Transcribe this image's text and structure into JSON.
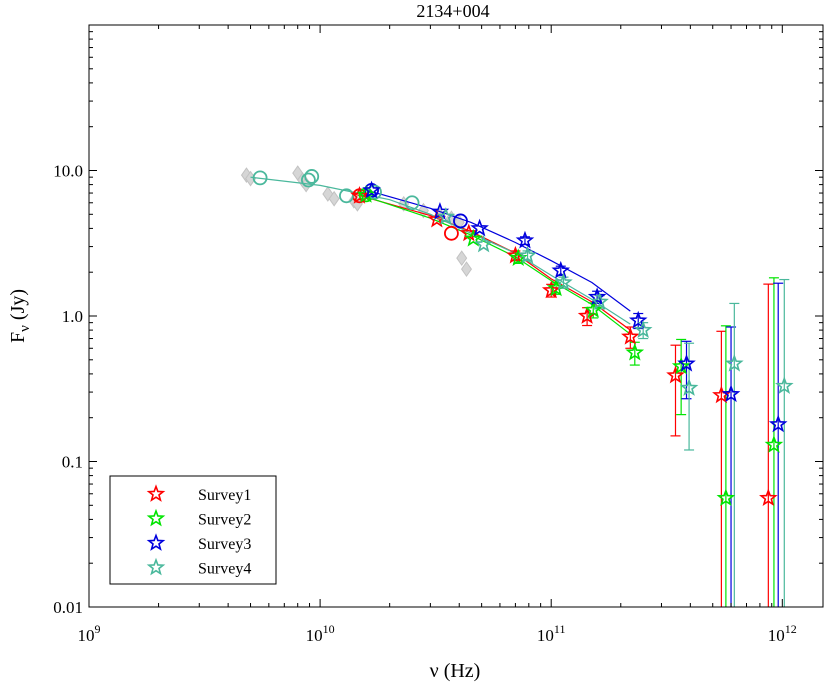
{
  "chart_data": {
    "type": "scatter",
    "title": "2134+004",
    "xlabel": "ν (Hz)",
    "ylabel_main": "F",
    "ylabel_sub": "ν",
    "ylabel_unit": " (Jy)",
    "x_scale": "log",
    "y_scale": "log",
    "xlim": [
      1000000000.0,
      1500000000000.0
    ],
    "ylim": [
      0.01,
      100
    ],
    "x_ticks": [
      {
        "value": 1000000000.0,
        "base": "10",
        "exp": "9"
      },
      {
        "value": 10000000000.0,
        "base": "10",
        "exp": "10"
      },
      {
        "value": 100000000000.0,
        "base": "10",
        "exp": "11"
      },
      {
        "value": 1000000000000.0,
        "base": "10",
        "exp": "12"
      }
    ],
    "y_ticks": [
      {
        "value": 0.01,
        "label": "0.01"
      },
      {
        "value": 0.1,
        "label": "0.1"
      },
      {
        "value": 1,
        "label": "1.0"
      },
      {
        "value": 10,
        "label": "10.0"
      }
    ],
    "legend": {
      "placement": "bottom-left"
    },
    "archival_points": [
      {
        "x": 4800000000.0,
        "y": 9.3
      },
      {
        "x": 5000000000.0,
        "y": 8.8
      },
      {
        "x": 8000000000.0,
        "y": 9.6
      },
      {
        "x": 8400000000.0,
        "y": 8.6
      },
      {
        "x": 8700000000.0,
        "y": 8.0
      },
      {
        "x": 10800000000.0,
        "y": 6.9
      },
      {
        "x": 11500000000.0,
        "y": 6.4
      },
      {
        "x": 14000000000.0,
        "y": 6.2
      },
      {
        "x": 14500000000.0,
        "y": 5.9
      },
      {
        "x": 23000000000.0,
        "y": 5.9
      },
      {
        "x": 28000000000.0,
        "y": 5.3
      },
      {
        "x": 33000000000.0,
        "y": 4.9
      },
      {
        "x": 37000000000.0,
        "y": 4.7
      },
      {
        "x": 40000000000.0,
        "y": 4.4
      },
      {
        "x": 41000000000.0,
        "y": 2.5
      },
      {
        "x": 43000000000.0,
        "y": 2.1
      }
    ],
    "series": [
      {
        "name": "Survey1",
        "color": "#ff0000",
        "circles": [
          {
            "x": 14800000000.0,
            "y": 6.7
          },
          {
            "x": 37000000000.0,
            "y": 3.7
          }
        ],
        "stars": [
          {
            "x": 14800000000.0,
            "y": 6.7
          },
          {
            "x": 32000000000.0,
            "y": 4.6
          },
          {
            "x": 44000000000.0,
            "y": 3.7
          },
          {
            "x": 70000000000.0,
            "y": 2.6,
            "err_lo": 0.2,
            "err_hi": 0.2
          },
          {
            "x": 100000000000.0,
            "y": 1.5,
            "err_lo": 0.15,
            "err_hi": 0.15
          },
          {
            "x": 143000000000.0,
            "y": 1.0,
            "err_lo": 0.14,
            "err_hi": 0.14
          },
          {
            "x": 220000000000.0,
            "y": 0.72,
            "err_lo": 0.12,
            "err_hi": 0.12
          },
          {
            "x": 345000000000.0,
            "y": 0.39,
            "err_lo": 0.24,
            "err_hi": 0.24
          },
          {
            "x": 545000000000.0,
            "y": 0.285,
            "err_lo": 0.28,
            "err_hi": 0.5
          },
          {
            "x": 870000000000.0,
            "y": 0.056,
            "err_lo": 0.05,
            "err_hi": 1.6
          }
        ],
        "fit": [
          {
            "x": 14000000000.0,
            "y": 6.9
          },
          {
            "x": 30000000000.0,
            "y": 4.9
          },
          {
            "x": 45000000000.0,
            "y": 3.8
          },
          {
            "x": 70000000000.0,
            "y": 2.7
          },
          {
            "x": 100000000000.0,
            "y": 1.8
          },
          {
            "x": 150000000000.0,
            "y": 1.25
          },
          {
            "x": 220000000000.0,
            "y": 0.8
          }
        ]
      },
      {
        "name": "Survey2",
        "color": "#00e400",
        "circles": [
          {
            "x": 15800000000.0,
            "y": 6.8
          }
        ],
        "stars": [
          {
            "x": 15800000000.0,
            "y": 6.8
          },
          {
            "x": 46000000000.0,
            "y": 3.4
          },
          {
            "x": 72000000000.0,
            "y": 2.5,
            "err_lo": 0.2,
            "err_hi": 0.2
          },
          {
            "x": 105000000000.0,
            "y": 1.55,
            "err_lo": 0.14,
            "err_hi": 0.14
          },
          {
            "x": 152000000000.0,
            "y": 1.1,
            "err_lo": 0.13,
            "err_hi": 0.13
          },
          {
            "x": 230000000000.0,
            "y": 0.56,
            "err_lo": 0.1,
            "err_hi": 0.1
          },
          {
            "x": 365000000000.0,
            "y": 0.45,
            "err_lo": 0.24,
            "err_hi": 0.24
          },
          {
            "x": 570000000000.0,
            "y": 0.056,
            "err_lo": 0.05,
            "err_hi": 0.8
          },
          {
            "x": 920000000000.0,
            "y": 0.13,
            "err_lo": 0.125,
            "err_hi": 1.7
          }
        ],
        "fit": [
          {
            "x": 15000000000.0,
            "y": 6.8
          },
          {
            "x": 30000000000.0,
            "y": 4.7
          },
          {
            "x": 45000000000.0,
            "y": 3.6
          },
          {
            "x": 70000000000.0,
            "y": 2.55
          },
          {
            "x": 100000000000.0,
            "y": 1.75
          },
          {
            "x": 150000000000.0,
            "y": 1.2
          },
          {
            "x": 220000000000.0,
            "y": 0.75
          }
        ]
      },
      {
        "name": "Survey3",
        "color": "#0000dd",
        "circles": [
          {
            "x": 16700000000.0,
            "y": 7.3
          },
          {
            "x": 40500000000.0,
            "y": 4.5
          }
        ],
        "stars": [
          {
            "x": 16700000000.0,
            "y": 7.3
          },
          {
            "x": 33000000000.0,
            "y": 5.2
          },
          {
            "x": 49000000000.0,
            "y": 4.0
          },
          {
            "x": 77000000000.0,
            "y": 3.3,
            "err_lo": 0.2,
            "err_hi": 0.2
          },
          {
            "x": 110000000000.0,
            "y": 2.05,
            "err_lo": 0.15,
            "err_hi": 0.15
          },
          {
            "x": 158000000000.0,
            "y": 1.35,
            "err_lo": 0.13,
            "err_hi": 0.13
          },
          {
            "x": 238000000000.0,
            "y": 0.93,
            "err_lo": 0.11,
            "err_hi": 0.11
          },
          {
            "x": 385000000000.0,
            "y": 0.47,
            "err_lo": 0.2,
            "err_hi": 0.2
          },
          {
            "x": 600000000000.0,
            "y": 0.29,
            "err_lo": 0.28,
            "err_hi": 0.55
          },
          {
            "x": 960000000000.0,
            "y": 0.18,
            "err_lo": 0.175,
            "err_hi": 1.5
          }
        ],
        "fit": [
          {
            "x": 16000000000.0,
            "y": 7.3
          },
          {
            "x": 30000000000.0,
            "y": 5.5
          },
          {
            "x": 45000000000.0,
            "y": 4.4
          },
          {
            "x": 70000000000.0,
            "y": 3.2
          },
          {
            "x": 100000000000.0,
            "y": 2.4
          },
          {
            "x": 150000000000.0,
            "y": 1.7
          },
          {
            "x": 220000000000.0,
            "y": 1.08
          }
        ]
      },
      {
        "name": "Survey4",
        "color": "#4ab89c",
        "circles": [
          {
            "x": 5500000000.0,
            "y": 8.9
          },
          {
            "x": 8900000000.0,
            "y": 8.6
          },
          {
            "x": 9200000000.0,
            "y": 9.1
          },
          {
            "x": 13000000000.0,
            "y": 6.7
          },
          {
            "x": 17200000000.0,
            "y": 7.1
          },
          {
            "x": 25000000000.0,
            "y": 6.0
          }
        ],
        "stars": [
          {
            "x": 35000000000.0,
            "y": 4.8
          },
          {
            "x": 51000000000.0,
            "y": 3.1
          },
          {
            "x": 79000000000.0,
            "y": 2.6,
            "err_lo": 0.2,
            "err_hi": 0.2
          },
          {
            "x": 113000000000.0,
            "y": 1.7,
            "err_lo": 0.15,
            "err_hi": 0.15
          },
          {
            "x": 162000000000.0,
            "y": 1.25,
            "err_lo": 0.13,
            "err_hi": 0.13
          },
          {
            "x": 250000000000.0,
            "y": 0.8,
            "err_lo": 0.1,
            "err_hi": 0.1
          },
          {
            "x": 395000000000.0,
            "y": 0.32,
            "err_lo": 0.2,
            "err_hi": 0.33
          },
          {
            "x": 620000000000.0,
            "y": 0.47,
            "err_lo": 0.465,
            "err_hi": 0.75
          },
          {
            "x": 1020000000000.0,
            "y": 0.33,
            "err_lo": 0.325,
            "err_hi": 1.45
          }
        ],
        "fit": [
          {
            "x": 5000000000.0,
            "y": 9.0
          },
          {
            "x": 10000000000.0,
            "y": 7.9
          },
          {
            "x": 20000000000.0,
            "y": 6.3
          },
          {
            "x": 30000000000.0,
            "y": 5.0
          },
          {
            "x": 45000000000.0,
            "y": 3.7
          },
          {
            "x": 70000000000.0,
            "y": 2.7
          },
          {
            "x": 100000000000.0,
            "y": 1.9
          },
          {
            "x": 150000000000.0,
            "y": 1.3
          },
          {
            "x": 220000000000.0,
            "y": 0.88
          }
        ]
      }
    ]
  }
}
